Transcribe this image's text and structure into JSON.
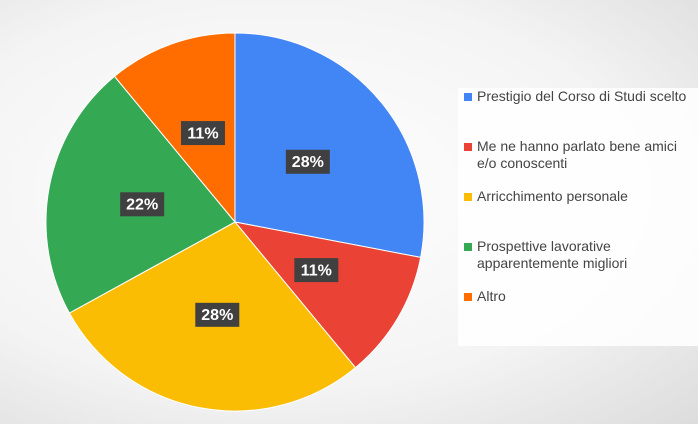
{
  "chart_data": {
    "type": "pie",
    "categories": [
      "Prestigio del Corso di Studi scelto",
      "Me ne hanno parlato bene amici e/o conoscenti",
      "Arricchimento personale",
      "Prospettive lavorative apparentemente migliori",
      "Altro"
    ],
    "values": [
      28,
      11,
      28,
      22,
      11
    ],
    "value_labels": [
      "28%",
      "11%",
      "28%",
      "22%",
      "11%"
    ],
    "colors": [
      "#4285f4",
      "#ea4335",
      "#fbbc04",
      "#34a853",
      "#ff6d01"
    ],
    "legend": "right"
  }
}
